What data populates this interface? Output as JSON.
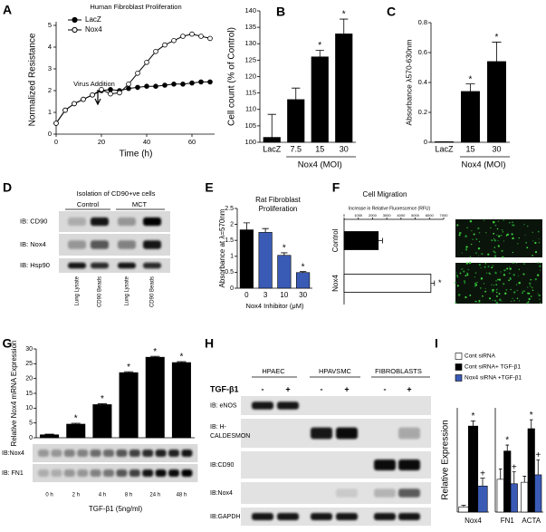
{
  "chart_data": [
    {
      "type": "line",
      "panel": "A",
      "title": "Human Fibroblast Proliferation",
      "x_label": "Time (h)",
      "y_label": "Normalized Resistance",
      "annotation": "Virus Addition",
      "x": [
        0,
        4,
        8,
        12,
        16,
        20,
        24,
        28,
        32,
        36,
        40,
        44,
        48,
        52,
        56,
        60,
        64,
        68
      ],
      "series": [
        {
          "name": "LacZ",
          "color": "#000000",
          "marker_fill": "#000000",
          "values": [
            0.5,
            1.1,
            1.4,
            1.6,
            1.8,
            2.0,
            2.05,
            2.0,
            2.1,
            2.15,
            2.2,
            2.2,
            2.25,
            2.3,
            2.3,
            2.35,
            2.4,
            2.4
          ]
        },
        {
          "name": "Nox4",
          "color": "#000000",
          "marker_fill": "#ffffff",
          "values": [
            0.5,
            1.1,
            1.4,
            1.6,
            1.8,
            2.05,
            1.85,
            1.9,
            2.3,
            2.8,
            3.3,
            3.8,
            4.1,
            4.3,
            4.5,
            4.6,
            4.5,
            4.4
          ]
        }
      ],
      "xlim": [
        0,
        70
      ],
      "ylim": [
        0,
        5
      ],
      "xticks": [
        0,
        20,
        40,
        60
      ],
      "yticks": [
        0,
        1,
        2,
        3,
        4,
        5
      ]
    },
    {
      "type": "bar",
      "panel": "B",
      "y_label": "Cell count (% of Control)",
      "group_label": "Nox4 (MOI)",
      "categories": [
        "LacZ",
        "7.5",
        "15",
        "30"
      ],
      "values": [
        101.5,
        113,
        126,
        133
      ],
      "errors": [
        7,
        3.5,
        2,
        4.5
      ],
      "markers": [
        null,
        null,
        "*",
        "*"
      ],
      "color": "#000000",
      "ylim": [
        100,
        140
      ],
      "yticks": [
        100,
        105,
        110,
        115,
        120,
        125,
        130,
        135,
        140
      ]
    },
    {
      "type": "bar",
      "panel": "C",
      "y_label": "Absorbance λ570-630nm",
      "group_label": "Nox4 (MOI)",
      "categories": [
        "LacZ",
        "15",
        "30"
      ],
      "values": [
        0.004,
        0.34,
        0.54
      ],
      "errors": [
        0,
        0.05,
        0.13
      ],
      "markers": [
        null,
        "*",
        "*"
      ],
      "color": "#000000",
      "ylim": [
        0,
        0.8
      ],
      "yticks": [
        0,
        0.2,
        0.4,
        0.6,
        0.8
      ]
    },
    {
      "type": "bar",
      "panel": "E",
      "title": "Rat Fibroblast Proliferation",
      "y_label": "Absorbance at λ=570nm",
      "x_label": "Nox4 Inhibitor (μM)",
      "categories": [
        "0",
        "3",
        "10",
        "30"
      ],
      "values": [
        1.83,
        1.75,
        1.03,
        0.49
      ],
      "errors": [
        0.22,
        0.12,
        0.08,
        0.03
      ],
      "markers": [
        null,
        null,
        "*",
        "*"
      ],
      "colors": [
        "#000000",
        "#3a5bb5",
        "#3a5bb5",
        "#3a5bb5"
      ],
      "ylim": [
        0,
        2.5
      ],
      "yticks": [
        0,
        0.5,
        1,
        1.5,
        2,
        2.5
      ]
    },
    {
      "type": "hbar",
      "panel": "F",
      "title": "Cell Migration",
      "x_label": "Increase in Relative Fluorescence (RFU)",
      "categories": [
        "Control",
        "Nox4"
      ],
      "values": [
        2400,
        6100
      ],
      "errors": [
        300,
        250
      ],
      "markers": [
        null,
        "*"
      ],
      "colors": [
        "#000000",
        "#ffffff"
      ],
      "xlim": [
        0,
        7000
      ],
      "xticks": [
        0,
        1000,
        2000,
        3000,
        4000,
        5000,
        6000,
        7000
      ]
    },
    {
      "type": "bar",
      "panel": "G",
      "y_label": "Relative Nox4 mRNA Expression",
      "x_label": "TGF-β1 (5ng/ml)",
      "categories": [
        "0 h",
        "2 h",
        "4 h",
        "8 h",
        "24 h",
        "48 h"
      ],
      "values": [
        1,
        4.6,
        11.2,
        22,
        27.2,
        25.4
      ],
      "errors": [
        0.2,
        0.3,
        0.3,
        0.3,
        0.3,
        0.3
      ],
      "markers": [
        null,
        "*",
        "*",
        "*",
        "*",
        "*"
      ],
      "color": "#000000",
      "ylim": [
        0,
        30
      ],
      "yticks": [
        0,
        5,
        10,
        15,
        20,
        25,
        30
      ]
    },
    {
      "type": "bar",
      "panel": "I",
      "y_label": "Relative Expression",
      "categories": [
        "Nox4"
      ],
      "ylim": [
        0,
        20
      ],
      "series": [
        {
          "name": "Cont siRNA",
          "color": "#ffffff",
          "values": [
            1.0
          ],
          "errors": [
            0.3
          ],
          "markers": [
            null
          ]
        },
        {
          "name": "Cont siRNA+ TGF-β1",
          "color": "#000000",
          "values": [
            16.5
          ],
          "errors": [
            1.0
          ],
          "markers": [
            "*"
          ]
        },
        {
          "name": "Nox4 siRNA +TGF-β1",
          "color": "#3a5bb5",
          "values": [
            5.0
          ],
          "errors": [
            1.5
          ],
          "markers": [
            "+"
          ]
        }
      ]
    },
    {
      "type": "bar",
      "categories": [
        "FN1",
        "ACTA"
      ],
      "ylim": [
        0,
        3.5
      ],
      "series": [
        {
          "color": "#ffffff",
          "values": [
            1.1,
            1.0
          ],
          "errors": [
            0.35,
            0.2
          ],
          "markers": [
            null,
            null
          ]
        },
        {
          "color": "#000000",
          "values": [
            2.05,
            2.8
          ],
          "errors": [
            0.2,
            0.3
          ],
          "markers": [
            "*",
            "*"
          ]
        },
        {
          "color": "#3a5bb5",
          "values": [
            0.95,
            1.25
          ],
          "errors": [
            0.4,
            0.5
          ],
          "markers": [
            "+",
            "+"
          ]
        }
      ]
    }
  ],
  "blots": {
    "D": {
      "panel": "D",
      "title": "Isolation of CD90+ve cells",
      "groups": [
        "Control",
        "MCT"
      ],
      "rows": [
        "IB: CD90",
        "IB: Nox4",
        "IB: Hsp90"
      ],
      "lanes": [
        "Lung Lysate",
        "CD90 Beads",
        "Lung Lysate",
        "CD90 Beads"
      ]
    },
    "G": {
      "rows": [
        "IB:Nox4",
        "IB: FN1"
      ]
    },
    "H": {
      "panel": "H",
      "groups": [
        "HPAEC",
        "HPAVSMC",
        "FIBROBLASTS"
      ],
      "treatment": "TGF-β1",
      "treatment_levels": [
        "-",
        "+",
        "-",
        "+",
        "-",
        "+"
      ],
      "rows": [
        "IB: eNOS",
        "IB: H-CALDESMON",
        "IB:CD90",
        "IB:Nox4",
        "IB:GAPDH"
      ]
    }
  }
}
